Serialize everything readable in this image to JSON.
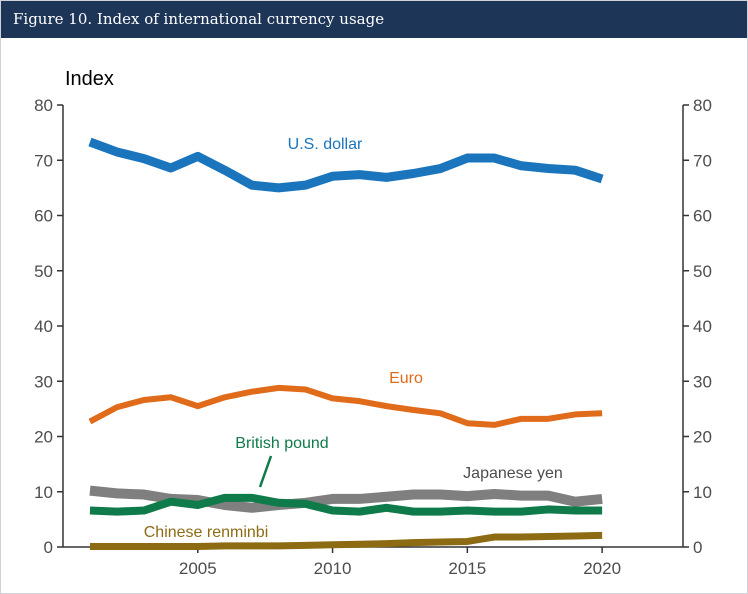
{
  "figure": {
    "title": "Figure 10. Index of international currency usage"
  },
  "chart_data": {
    "type": "line",
    "ylabel": "Index",
    "ylim": [
      0,
      80
    ],
    "xlim": [
      2000,
      2023
    ],
    "yticks": [
      0,
      10,
      20,
      30,
      40,
      50,
      60,
      70,
      80
    ],
    "xticks": [
      2005,
      2010,
      2015,
      2020
    ],
    "right_axis": true,
    "grid": false,
    "legend": "direct labels",
    "x": [
      2001,
      2002,
      2003,
      2004,
      2005,
      2006,
      2007,
      2008,
      2009,
      2010,
      2011,
      2012,
      2013,
      2014,
      2015,
      2016,
      2017,
      2018,
      2019,
      2020
    ],
    "series": [
      {
        "name": "U.S. dollar",
        "color": "#1a75bc",
        "values": [
          73.3,
          71.5,
          70.3,
          68.6,
          70.7,
          68.2,
          65.5,
          65.0,
          65.5,
          67.1,
          67.4,
          66.9,
          67.6,
          68.5,
          70.4,
          70.4,
          69.0,
          68.5,
          68.2,
          66.6
        ]
      },
      {
        "name": "Euro",
        "color": "#e06b1a",
        "values": [
          22.7,
          25.3,
          26.6,
          27.1,
          25.5,
          27.1,
          28.1,
          28.8,
          28.5,
          26.9,
          26.4,
          25.5,
          24.8,
          24.2,
          22.4,
          22.1,
          23.2,
          23.2,
          24.0,
          24.2
        ]
      },
      {
        "name": "Japanese yen",
        "color": "#7f7f7f",
        "values": [
          10.2,
          9.7,
          9.5,
          8.7,
          8.5,
          7.6,
          7.1,
          7.6,
          8.0,
          8.7,
          8.7,
          9.1,
          9.5,
          9.5,
          9.2,
          9.6,
          9.3,
          9.3,
          8.2,
          8.7
        ]
      },
      {
        "name": "British pound",
        "color": "#0f7a4a",
        "values": [
          6.6,
          6.4,
          6.6,
          8.2,
          7.6,
          8.9,
          8.9,
          8.0,
          7.8,
          6.6,
          6.4,
          7.1,
          6.4,
          6.4,
          6.6,
          6.4,
          6.4,
          6.8,
          6.6,
          6.6
        ]
      },
      {
        "name": "Chinese renminbi",
        "color": "#8c6b12",
        "values": [
          0.1,
          0.1,
          0.1,
          0.1,
          0.1,
          0.2,
          0.2,
          0.2,
          0.3,
          0.4,
          0.5,
          0.6,
          0.8,
          0.9,
          1.0,
          1.8,
          1.8,
          1.9,
          2.0,
          2.1
        ]
      }
    ]
  }
}
